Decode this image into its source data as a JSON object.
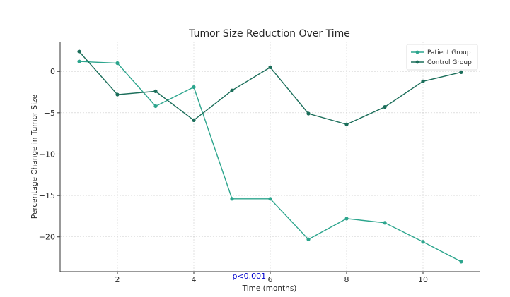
{
  "chart_data": {
    "type": "line",
    "title": "Tumor Size Reduction Over Time",
    "xlabel": "Time (months)",
    "ylabel": "Percentage Change in Tumor Size",
    "x": [
      1,
      2,
      3,
      4,
      5,
      6,
      7,
      8,
      9,
      10,
      11
    ],
    "xlim": [
      0.5,
      11.5
    ],
    "ylim": [
      -24.2,
      3.6
    ],
    "xticks": [
      2,
      4,
      6,
      8,
      10
    ],
    "yticks": [
      0,
      -5,
      -10,
      -15,
      -20
    ],
    "grid": true,
    "legend_position": "top-right",
    "series": [
      {
        "name": "Patient Group",
        "color": "#2ca58d",
        "values": [
          1.2,
          1.0,
          -4.2,
          -1.9,
          -15.4,
          -15.4,
          -20.3,
          -17.8,
          -18.3,
          -20.6,
          -23.0
        ]
      },
      {
        "name": "Control Group",
        "color": "#1b6e5a",
        "values": [
          2.4,
          -2.8,
          -2.4,
          -5.9,
          -2.3,
          0.5,
          -5.1,
          -6.4,
          -4.3,
          -1.2,
          -0.1
        ]
      }
    ],
    "annotations": [
      {
        "text": "p<0.001",
        "x": 5.45,
        "y": -24.2,
        "color": "#0000cc"
      }
    ]
  }
}
